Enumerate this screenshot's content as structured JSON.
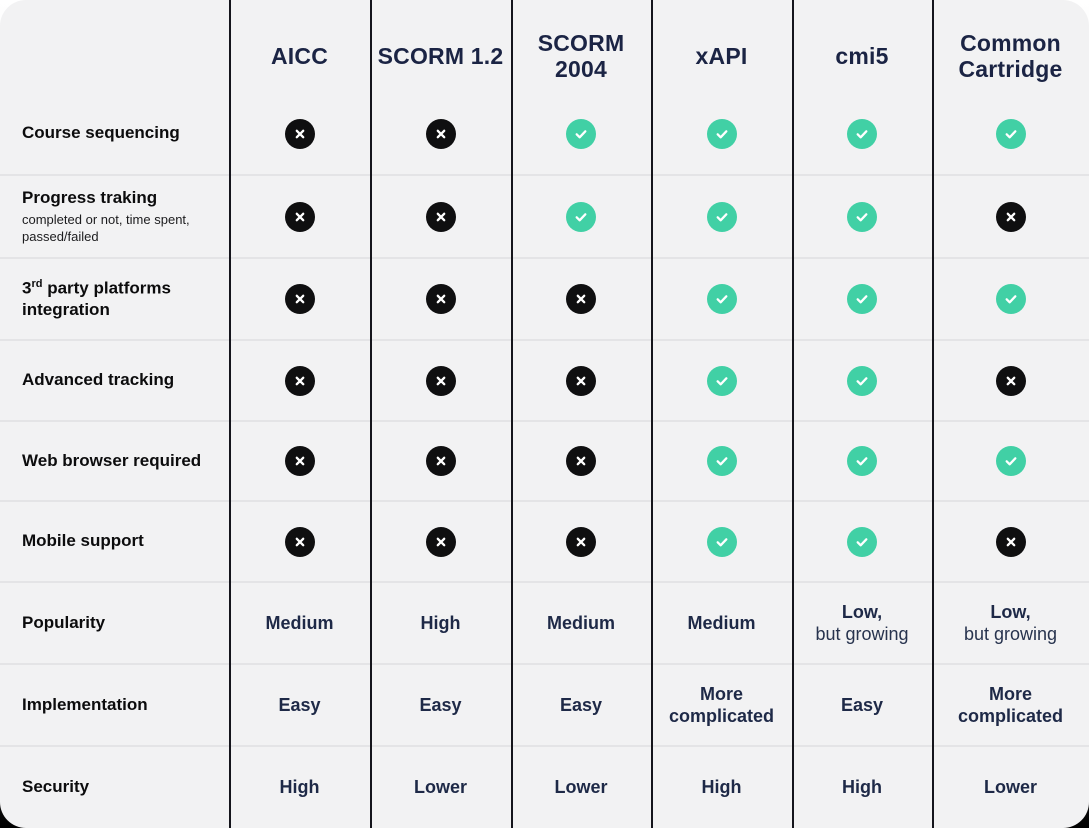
{
  "colors": {
    "card_background": "#f2f2f3",
    "check_circle": "#41d0a5",
    "cross_circle": "#0f0f10",
    "header_text": "#1b2444",
    "value_text": "#1e2947",
    "label_text": "#0c0c0d",
    "row_divider": "#e4e4e6",
    "column_line": "#15151c"
  },
  "table": {
    "columns": [
      "AICC",
      "SCORM 1.2",
      "SCORM 2004",
      "xAPI",
      "cmi5",
      "Common Cartridge"
    ],
    "rows": [
      {
        "label": "Course sequencing",
        "cells": [
          {
            "icon": "cross"
          },
          {
            "icon": "cross"
          },
          {
            "icon": "check"
          },
          {
            "icon": "check"
          },
          {
            "icon": "check"
          },
          {
            "icon": "check"
          }
        ]
      },
      {
        "label": "Progress traking",
        "sublabel": "completed or not, time spent, passed/failed",
        "cells": [
          {
            "icon": "cross"
          },
          {
            "icon": "cross"
          },
          {
            "icon": "check"
          },
          {
            "icon": "check"
          },
          {
            "icon": "check"
          },
          {
            "icon": "cross"
          }
        ]
      },
      {
        "label_pre": "3",
        "label_sup": "rd",
        "label_post": " party platforms integration",
        "cells": [
          {
            "icon": "cross"
          },
          {
            "icon": "cross"
          },
          {
            "icon": "cross"
          },
          {
            "icon": "check"
          },
          {
            "icon": "check"
          },
          {
            "icon": "check"
          }
        ]
      },
      {
        "label": "Advanced tracking",
        "cells": [
          {
            "icon": "cross"
          },
          {
            "icon": "cross"
          },
          {
            "icon": "cross"
          },
          {
            "icon": "check"
          },
          {
            "icon": "check"
          },
          {
            "icon": "cross"
          }
        ]
      },
      {
        "label": "Web browser required",
        "cells": [
          {
            "icon": "cross"
          },
          {
            "icon": "cross"
          },
          {
            "icon": "cross"
          },
          {
            "icon": "check"
          },
          {
            "icon": "check"
          },
          {
            "icon": "check"
          }
        ]
      },
      {
        "label": "Mobile support",
        "cells": [
          {
            "icon": "cross"
          },
          {
            "icon": "cross"
          },
          {
            "icon": "cross"
          },
          {
            "icon": "check"
          },
          {
            "icon": "check"
          },
          {
            "icon": "cross"
          }
        ]
      },
      {
        "label": "Popularity",
        "cells": [
          {
            "text": "Medium"
          },
          {
            "text": "High"
          },
          {
            "text": "Medium"
          },
          {
            "text": "Medium"
          },
          {
            "text_bold": "Low,",
            "text_normal": "but growing"
          },
          {
            "text_bold": "Low,",
            "text_normal": "but growing"
          }
        ]
      },
      {
        "label": "Implementation",
        "cells": [
          {
            "text": "Easy"
          },
          {
            "text": "Easy"
          },
          {
            "text": "Easy"
          },
          {
            "text": "More complicated"
          },
          {
            "text": "Easy"
          },
          {
            "text": "More complicated"
          }
        ]
      },
      {
        "label": "Security",
        "cells": [
          {
            "text": "High"
          },
          {
            "text": "Lower"
          },
          {
            "text": "Lower"
          },
          {
            "text": "High"
          },
          {
            "text": "High"
          },
          {
            "text": "Lower"
          }
        ]
      }
    ]
  },
  "chart_data": {
    "type": "table",
    "title": "E-learning standards feature comparison",
    "columns": [
      "",
      "AICC",
      "SCORM 1.2",
      "SCORM 2004",
      "xAPI",
      "cmi5",
      "Common Cartridge"
    ],
    "rows": [
      [
        "Course sequencing",
        "no",
        "no",
        "yes",
        "yes",
        "yes",
        "yes"
      ],
      [
        "Progress traking (completed or not, time spent, passed/failed)",
        "no",
        "no",
        "yes",
        "yes",
        "yes",
        "no"
      ],
      [
        "3rd party platforms integration",
        "no",
        "no",
        "no",
        "yes",
        "yes",
        "yes"
      ],
      [
        "Advanced tracking",
        "no",
        "no",
        "no",
        "yes",
        "yes",
        "no"
      ],
      [
        "Web browser required",
        "no",
        "no",
        "no",
        "yes",
        "yes",
        "yes"
      ],
      [
        "Mobile support",
        "no",
        "no",
        "no",
        "yes",
        "yes",
        "no"
      ],
      [
        "Popularity",
        "Medium",
        "High",
        "Medium",
        "Medium",
        "Low, but growing",
        "Low, but growing"
      ],
      [
        "Implementation",
        "Easy",
        "Easy",
        "Easy",
        "More complicated",
        "Easy",
        "More complicated"
      ],
      [
        "Security",
        "High",
        "Lower",
        "Lower",
        "High",
        "High",
        "Lower"
      ]
    ]
  }
}
